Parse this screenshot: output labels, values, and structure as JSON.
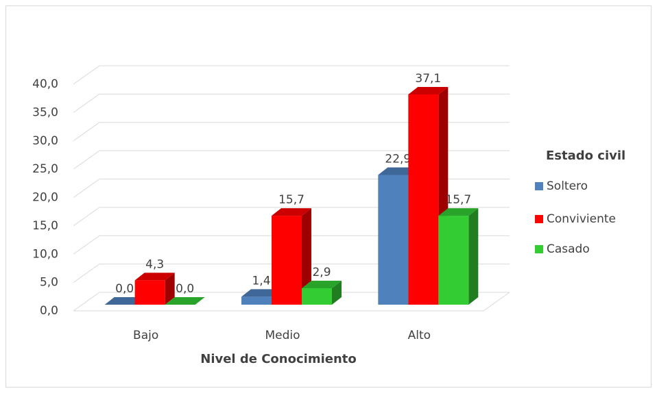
{
  "chart_data": {
    "type": "bar3d",
    "categories": [
      "Bajo",
      "Medio",
      "Alto"
    ],
    "series": [
      {
        "name": "Soltero",
        "color": "#4f81bd",
        "values": [
          0.0,
          1.4,
          22.9
        ],
        "value_labels": [
          "0,0",
          "1,4",
          "22,9"
        ]
      },
      {
        "name": "Conviviente",
        "color": "#ff0000",
        "values": [
          4.3,
          15.7,
          37.1
        ],
        "value_labels": [
          "4,3",
          "15,7",
          "37,1"
        ]
      },
      {
        "name": "Casado",
        "color": "#33cc33",
        "values": [
          0.0,
          2.9,
          15.7
        ],
        "value_labels": [
          "0,0",
          "2,9",
          "15,7"
        ]
      }
    ],
    "ylim": [
      0,
      40
    ],
    "yticks": [
      {
        "value": 0,
        "label": "0,0"
      },
      {
        "value": 5,
        "label": "5,0"
      },
      {
        "value": 10,
        "label": "10,0"
      },
      {
        "value": 15,
        "label": "15,0"
      },
      {
        "value": 20,
        "label": "20,0"
      },
      {
        "value": 25,
        "label": "25,0"
      },
      {
        "value": 30,
        "label": "30,0"
      },
      {
        "value": 35,
        "label": "35,0"
      },
      {
        "value": 40,
        "label": "40,0"
      }
    ],
    "xlabel": "Nivel de Conocimiento",
    "legend_title": "Estado civil",
    "legend": "right",
    "grid": true
  }
}
